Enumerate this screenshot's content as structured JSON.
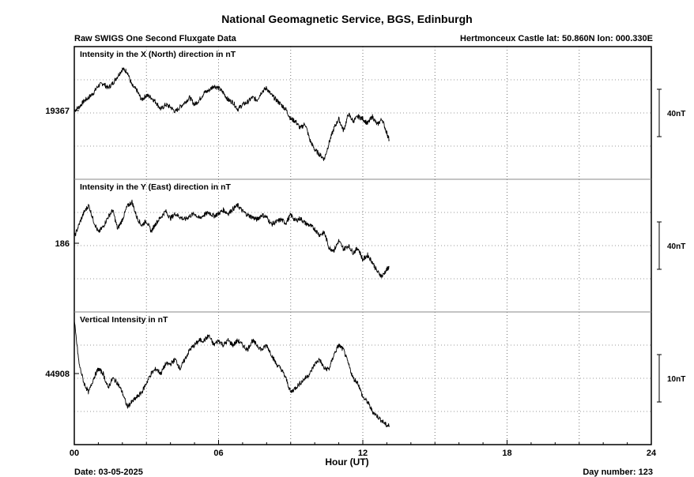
{
  "header": {
    "title": "National Geomagnetic Service, BGS, Edinburgh",
    "subtitle_left": "Raw SWIGS One Second Fluxgate Data",
    "subtitle_right": "Hertmonceux Castle  lat: 50.860N lon: 000.330E"
  },
  "footer": {
    "date": "Date: 03-05-2025",
    "day_number": "Day number:  123"
  },
  "chart_data": {
    "type": "line",
    "xlabel": "Hour (UT)",
    "xlim": [
      0,
      24
    ],
    "x_ticks": [
      "00",
      "06",
      "12",
      "18",
      "24"
    ],
    "grid": true,
    "panels": [
      {
        "title": "Intensity in the X (North) direction in nT",
        "baseline_label": "19367",
        "baseline": 19367,
        "ylim": [
          19309,
          19421
        ],
        "scale_bar": "40nT",
        "scale_nT": 40,
        "color": "#000000",
        "x": [
          0.0,
          0.2,
          0.4,
          0.6,
          0.8,
          1.0,
          1.2,
          1.4,
          1.6,
          1.8,
          2.0,
          2.2,
          2.4,
          2.6,
          2.8,
          3.0,
          3.2,
          3.4,
          3.6,
          3.8,
          4.0,
          4.2,
          4.4,
          4.6,
          4.8,
          5.0,
          5.2,
          5.4,
          5.6,
          5.8,
          6.0,
          6.2,
          6.4,
          6.6,
          6.8,
          7.0,
          7.2,
          7.4,
          7.6,
          7.8,
          8.0,
          8.2,
          8.4,
          8.6,
          8.8,
          9.0,
          9.2,
          9.4,
          9.6,
          9.8,
          10.0,
          10.2,
          10.4,
          10.6,
          10.8,
          11.0,
          11.2,
          11.4,
          11.6,
          11.8,
          12.0,
          12.2,
          12.4,
          12.6,
          12.8,
          13.0,
          13.1
        ],
        "y": [
          19367,
          19370,
          19375,
          19378,
          19382,
          19388,
          19390,
          19386,
          19390,
          19396,
          19402,
          19400,
          19388,
          19384,
          19376,
          19380,
          19378,
          19374,
          19368,
          19372,
          19370,
          19366,
          19370,
          19374,
          19378,
          19372,
          19376,
          19382,
          19384,
          19388,
          19386,
          19382,
          19376,
          19374,
          19368,
          19372,
          19374,
          19378,
          19376,
          19383,
          19386,
          19380,
          19376,
          19372,
          19368,
          19360,
          19358,
          19352,
          19356,
          19342,
          19334,
          19330,
          19326,
          19340,
          19352,
          19360,
          19350,
          19364,
          19358,
          19362,
          19360,
          19356,
          19362,
          19355,
          19360,
          19348,
          19342
        ]
      },
      {
        "title": "Intensity in the Y (East) direction in nT",
        "baseline_label": "186",
        "baseline": 186,
        "ylim": [
          128,
          240
        ],
        "scale_bar": "40nT",
        "scale_nT": 40,
        "color": "#000000",
        "x": [
          0.0,
          0.2,
          0.4,
          0.6,
          0.8,
          1.0,
          1.2,
          1.4,
          1.6,
          1.8,
          2.0,
          2.2,
          2.4,
          2.6,
          2.8,
          3.0,
          3.2,
          3.4,
          3.6,
          3.8,
          4.0,
          4.2,
          4.4,
          4.6,
          4.8,
          5.0,
          5.2,
          5.4,
          5.6,
          5.8,
          6.0,
          6.2,
          6.4,
          6.6,
          6.8,
          7.0,
          7.2,
          7.4,
          7.6,
          7.8,
          8.0,
          8.2,
          8.4,
          8.6,
          8.8,
          9.0,
          9.2,
          9.4,
          9.6,
          9.8,
          10.0,
          10.2,
          10.4,
          10.6,
          10.8,
          11.0,
          11.2,
          11.4,
          11.6,
          11.8,
          12.0,
          12.2,
          12.4,
          12.6,
          12.8,
          13.0,
          13.1
        ],
        "y": [
          191,
          202,
          212,
          218,
          205,
          195,
          200,
          208,
          214,
          198,
          206,
          217,
          221,
          208,
          201,
          205,
          196,
          203,
          208,
          213,
          207,
          211,
          208,
          206,
          209,
          211,
          207,
          210,
          212,
          209,
          211,
          214,
          211,
          215,
          218,
          213,
          210,
          208,
          206,
          210,
          208,
          202,
          204,
          206,
          203,
          210,
          205,
          207,
          203,
          201,
          198,
          193,
          195,
          182,
          180,
          188,
          181,
          184,
          178,
          182,
          172,
          176,
          170,
          162,
          158,
          164,
          166
        ]
      },
      {
        "title": "Vertical Intensity in nT",
        "baseline_label": "44908",
        "baseline": 44908,
        "ylim": [
          44893,
          44921
        ],
        "scale_bar": "10nT",
        "scale_nT": 10,
        "color": "#000000",
        "x": [
          0.0,
          0.2,
          0.4,
          0.6,
          0.8,
          1.0,
          1.2,
          1.4,
          1.6,
          1.8,
          2.0,
          2.2,
          2.4,
          2.6,
          2.8,
          3.0,
          3.2,
          3.4,
          3.6,
          3.8,
          4.0,
          4.2,
          4.4,
          4.6,
          4.8,
          5.0,
          5.2,
          5.4,
          5.6,
          5.8,
          6.0,
          6.2,
          6.4,
          6.6,
          6.8,
          7.0,
          7.2,
          7.4,
          7.6,
          7.8,
          8.0,
          8.2,
          8.4,
          8.6,
          8.8,
          9.0,
          9.2,
          9.4,
          9.6,
          9.8,
          10.0,
          10.2,
          10.4,
          10.6,
          10.8,
          11.0,
          11.2,
          11.4,
          11.6,
          11.8,
          12.0,
          12.2,
          12.4,
          12.6,
          12.8,
          13.0,
          13.1
        ],
        "y": [
          44919,
          44910,
          44906,
          44904,
          44907,
          44909,
          44908,
          44905,
          44907,
          44906,
          44904,
          44901,
          44902,
          44903,
          44904,
          44906,
          44908,
          44909,
          44908,
          44910,
          44910,
          44911,
          44909,
          44911,
          44913,
          44914,
          44915,
          44915,
          44916,
          44914,
          44915,
          44914,
          44915,
          44914,
          44915,
          44914,
          44913,
          44915,
          44914,
          44913,
          44914,
          44912,
          44910,
          44909,
          44907,
          44904,
          44905,
          44906,
          44907,
          44908,
          44910,
          44911,
          44909,
          44909,
          44912,
          44914,
          44913,
          44910,
          44907,
          44906,
          44903,
          44902,
          44900,
          44899,
          44898,
          44897,
          44897
        ]
      }
    ]
  }
}
